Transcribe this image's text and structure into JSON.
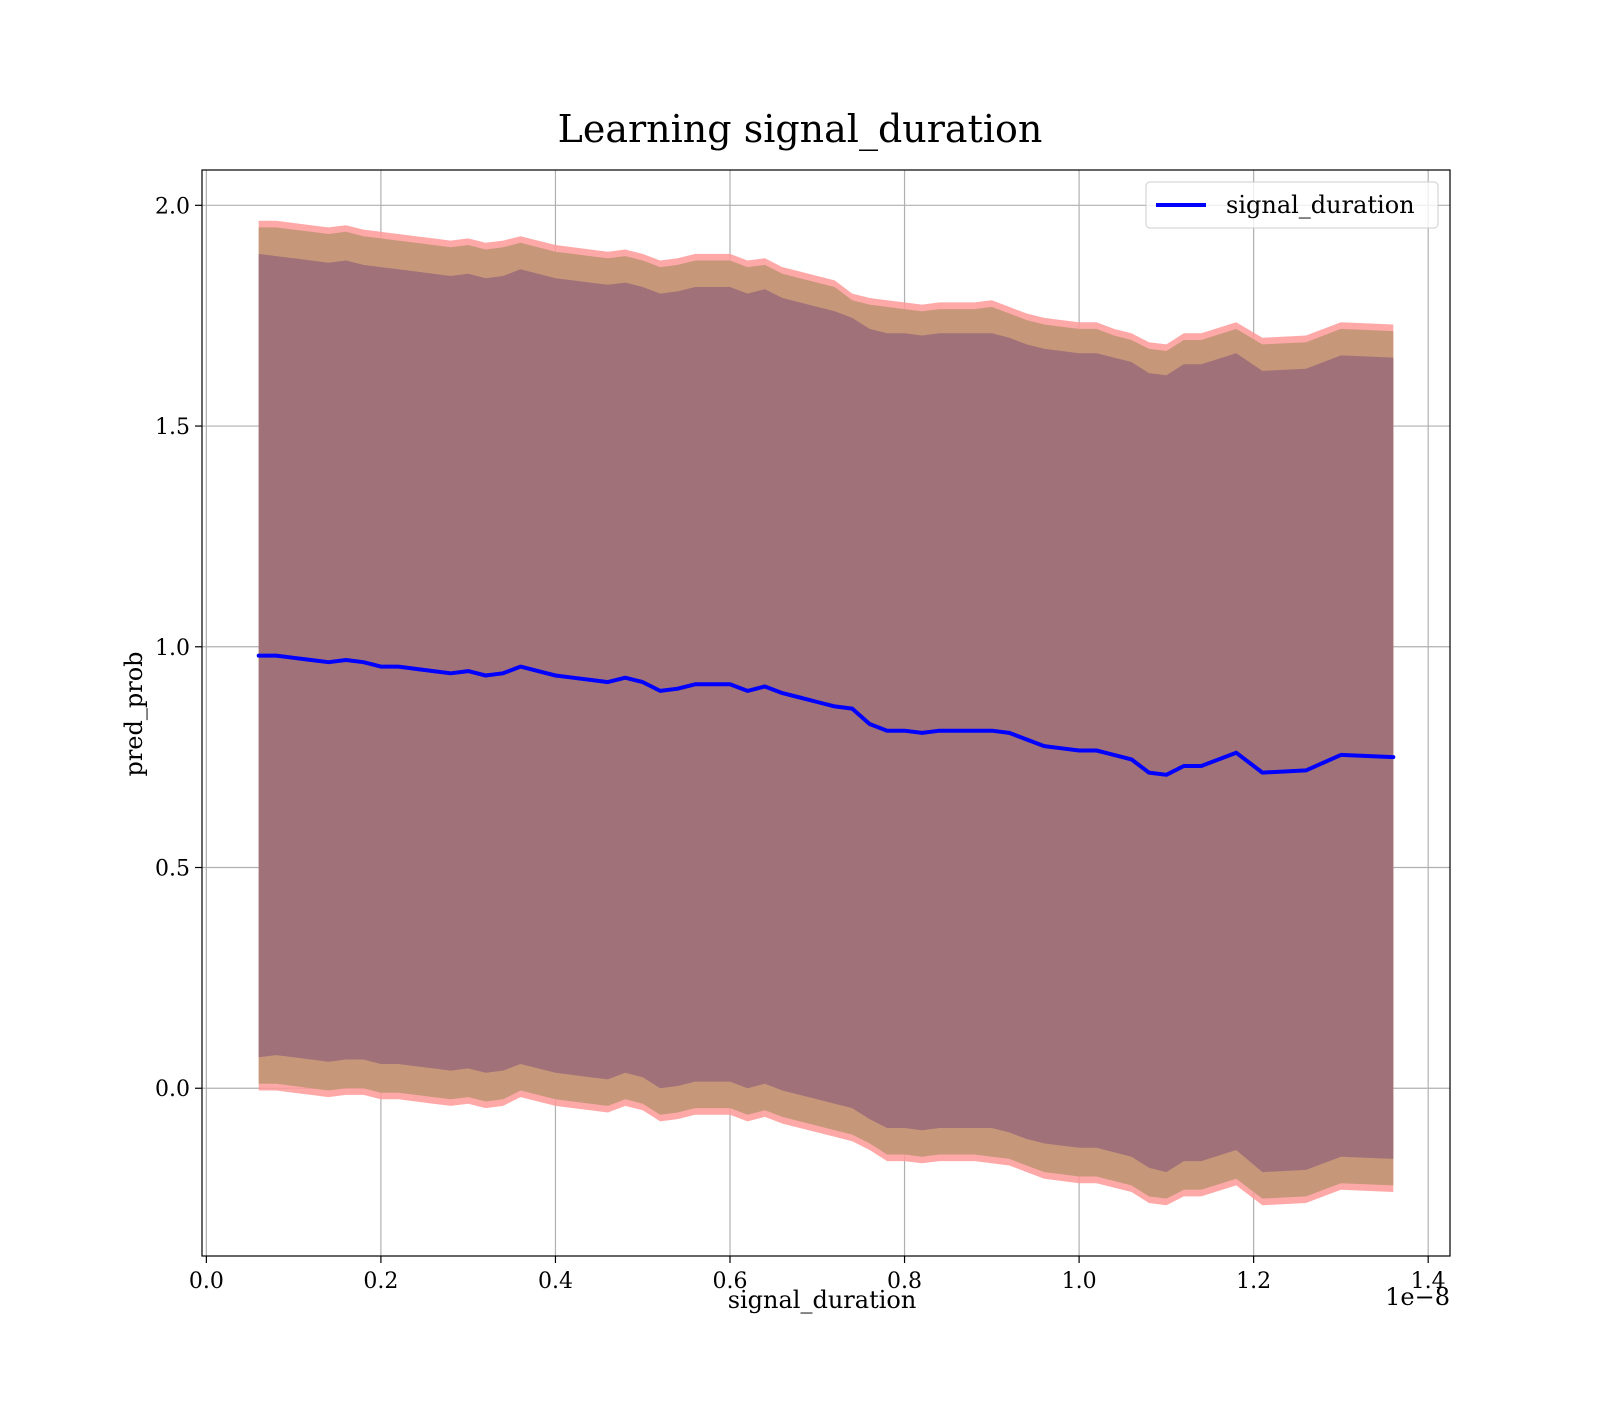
{
  "colors": {
    "line": "#0000ff",
    "band_outer": "#ff9999",
    "band_middle": "#c7977a",
    "band_inner": "#a07179",
    "grid": "#b0b0b0",
    "frame": "#000000"
  },
  "chart_data": {
    "type": "line",
    "title": "Learning signal_duration",
    "xlabel": "signal_duration",
    "ylabel": "pred_prob",
    "x_offset_label": "1e−8",
    "xlim": [
      -0.005,
      1.425
    ],
    "ylim": [
      -0.38,
      2.08
    ],
    "x_ticks": [
      0.0,
      0.2,
      0.4,
      0.6,
      0.8,
      1.0,
      1.2,
      1.4
    ],
    "x_tick_labels": [
      "0.0",
      "0.2",
      "0.4",
      "0.6",
      "0.8",
      "1.0",
      "1.2",
      "1.4"
    ],
    "y_ticks": [
      0.0,
      0.5,
      1.0,
      1.5,
      2.0
    ],
    "y_tick_labels": [
      "0.0",
      "0.5",
      "1.0",
      "1.5",
      "2.0"
    ],
    "grid": true,
    "legend_position": "top-right",
    "series": [
      {
        "name": "signal_duration",
        "x": [
          0.06,
          0.08,
          0.1,
          0.12,
          0.14,
          0.16,
          0.18,
          0.2,
          0.22,
          0.24,
          0.26,
          0.28,
          0.3,
          0.32,
          0.34,
          0.36,
          0.38,
          0.4,
          0.42,
          0.44,
          0.46,
          0.48,
          0.5,
          0.52,
          0.54,
          0.56,
          0.58,
          0.6,
          0.62,
          0.64,
          0.66,
          0.68,
          0.7,
          0.72,
          0.74,
          0.76,
          0.78,
          0.8,
          0.82,
          0.84,
          0.86,
          0.88,
          0.9,
          0.92,
          0.94,
          0.96,
          0.98,
          1.0,
          1.02,
          1.04,
          1.06,
          1.08,
          1.1,
          1.12,
          1.14,
          1.18,
          1.21,
          1.26,
          1.3,
          1.36
        ],
        "values": [
          0.98,
          0.98,
          0.975,
          0.97,
          0.965,
          0.97,
          0.965,
          0.955,
          0.955,
          0.95,
          0.945,
          0.94,
          0.945,
          0.935,
          0.94,
          0.955,
          0.945,
          0.935,
          0.93,
          0.925,
          0.92,
          0.93,
          0.92,
          0.9,
          0.905,
          0.915,
          0.915,
          0.915,
          0.9,
          0.91,
          0.895,
          0.885,
          0.875,
          0.865,
          0.86,
          0.825,
          0.81,
          0.81,
          0.805,
          0.81,
          0.81,
          0.81,
          0.81,
          0.805,
          0.79,
          0.775,
          0.77,
          0.765,
          0.765,
          0.755,
          0.745,
          0.715,
          0.71,
          0.73,
          0.73,
          0.76,
          0.715,
          0.72,
          0.755,
          0.75
        ]
      }
    ],
    "bands": [
      {
        "x": [
          0.06,
          0.08,
          0.1,
          0.12,
          0.14,
          0.16,
          0.18,
          0.2,
          0.22,
          0.24,
          0.26,
          0.28,
          0.3,
          0.32,
          0.34,
          0.36,
          0.38,
          0.4,
          0.42,
          0.44,
          0.46,
          0.48,
          0.5,
          0.52,
          0.54,
          0.56,
          0.58,
          0.6,
          0.62,
          0.64,
          0.66,
          0.68,
          0.7,
          0.72,
          0.74,
          0.76,
          0.78,
          0.8,
          0.82,
          0.84,
          0.86,
          0.88,
          0.9,
          0.92,
          0.94,
          0.96,
          0.98,
          1.0,
          1.02,
          1.04,
          1.06,
          1.08,
          1.1,
          1.12,
          1.14,
          1.18,
          1.21,
          1.26,
          1.3,
          1.36
        ],
        "upper": [
          1.965,
          1.965,
          1.96,
          1.955,
          1.95,
          1.955,
          1.945,
          1.94,
          1.935,
          1.93,
          1.925,
          1.92,
          1.925,
          1.915,
          1.92,
          1.93,
          1.92,
          1.91,
          1.905,
          1.9,
          1.895,
          1.9,
          1.89,
          1.875,
          1.88,
          1.89,
          1.89,
          1.89,
          1.875,
          1.88,
          1.86,
          1.85,
          1.84,
          1.83,
          1.8,
          1.79,
          1.785,
          1.78,
          1.775,
          1.78,
          1.78,
          1.78,
          1.785,
          1.77,
          1.755,
          1.745,
          1.74,
          1.735,
          1.735,
          1.72,
          1.71,
          1.69,
          1.685,
          1.71,
          1.71,
          1.735,
          1.7,
          1.705,
          1.735,
          1.73
        ],
        "lower": [
          -0.005,
          -0.005,
          -0.01,
          -0.015,
          -0.02,
          -0.015,
          -0.015,
          -0.025,
          -0.025,
          -0.03,
          -0.035,
          -0.04,
          -0.035,
          -0.045,
          -0.04,
          -0.02,
          -0.03,
          -0.04,
          -0.045,
          -0.05,
          -0.055,
          -0.04,
          -0.05,
          -0.075,
          -0.07,
          -0.06,
          -0.06,
          -0.06,
          -0.075,
          -0.065,
          -0.08,
          -0.09,
          -0.1,
          -0.11,
          -0.12,
          -0.14,
          -0.165,
          -0.165,
          -0.17,
          -0.165,
          -0.165,
          -0.165,
          -0.17,
          -0.175,
          -0.19,
          -0.205,
          -0.21,
          -0.215,
          -0.215,
          -0.225,
          -0.235,
          -0.26,
          -0.265,
          -0.245,
          -0.245,
          -0.22,
          -0.265,
          -0.26,
          -0.23,
          -0.235
        ],
        "fill": "#ff9999",
        "opacity": 0.85
      },
      {
        "x": [
          0.06,
          0.08,
          0.1,
          0.12,
          0.14,
          0.16,
          0.18,
          0.2,
          0.22,
          0.24,
          0.26,
          0.28,
          0.3,
          0.32,
          0.34,
          0.36,
          0.38,
          0.4,
          0.42,
          0.44,
          0.46,
          0.48,
          0.5,
          0.52,
          0.54,
          0.56,
          0.58,
          0.6,
          0.62,
          0.64,
          0.66,
          0.68,
          0.7,
          0.72,
          0.74,
          0.76,
          0.78,
          0.8,
          0.82,
          0.84,
          0.86,
          0.88,
          0.9,
          0.92,
          0.94,
          0.96,
          0.98,
          1.0,
          1.02,
          1.04,
          1.06,
          1.08,
          1.1,
          1.12,
          1.14,
          1.18,
          1.21,
          1.26,
          1.3,
          1.36
        ],
        "upper": [
          1.95,
          1.95,
          1.945,
          1.94,
          1.935,
          1.94,
          1.93,
          1.925,
          1.92,
          1.915,
          1.91,
          1.905,
          1.91,
          1.9,
          1.905,
          1.915,
          1.905,
          1.895,
          1.89,
          1.885,
          1.88,
          1.885,
          1.875,
          1.86,
          1.865,
          1.875,
          1.875,
          1.875,
          1.86,
          1.865,
          1.845,
          1.835,
          1.825,
          1.815,
          1.785,
          1.775,
          1.77,
          1.765,
          1.76,
          1.765,
          1.765,
          1.765,
          1.77,
          1.755,
          1.74,
          1.73,
          1.725,
          1.72,
          1.72,
          1.705,
          1.695,
          1.675,
          1.67,
          1.695,
          1.695,
          1.72,
          1.685,
          1.69,
          1.72,
          1.715
        ],
        "lower": [
          0.01,
          0.01,
          0.005,
          0.0,
          -0.005,
          0.0,
          0.0,
          -0.01,
          -0.01,
          -0.015,
          -0.02,
          -0.025,
          -0.02,
          -0.03,
          -0.025,
          -0.005,
          -0.015,
          -0.025,
          -0.03,
          -0.035,
          -0.04,
          -0.025,
          -0.035,
          -0.06,
          -0.055,
          -0.045,
          -0.045,
          -0.045,
          -0.06,
          -0.05,
          -0.065,
          -0.075,
          -0.085,
          -0.095,
          -0.105,
          -0.125,
          -0.15,
          -0.15,
          -0.155,
          -0.15,
          -0.15,
          -0.15,
          -0.155,
          -0.16,
          -0.175,
          -0.19,
          -0.195,
          -0.2,
          -0.2,
          -0.21,
          -0.22,
          -0.245,
          -0.25,
          -0.23,
          -0.23,
          -0.205,
          -0.25,
          -0.245,
          -0.215,
          -0.22
        ],
        "fill": "#c7977a",
        "opacity": 1
      },
      {
        "x": [
          0.06,
          0.08,
          0.1,
          0.12,
          0.14,
          0.16,
          0.18,
          0.2,
          0.22,
          0.24,
          0.26,
          0.28,
          0.3,
          0.32,
          0.34,
          0.36,
          0.38,
          0.4,
          0.42,
          0.44,
          0.46,
          0.48,
          0.5,
          0.52,
          0.54,
          0.56,
          0.58,
          0.6,
          0.62,
          0.64,
          0.66,
          0.68,
          0.7,
          0.72,
          0.74,
          0.76,
          0.78,
          0.8,
          0.82,
          0.84,
          0.86,
          0.88,
          0.9,
          0.92,
          0.94,
          0.96,
          0.98,
          1.0,
          1.02,
          1.04,
          1.06,
          1.08,
          1.1,
          1.12,
          1.14,
          1.18,
          1.21,
          1.26,
          1.3,
          1.36
        ],
        "upper": [
          1.89,
          1.885,
          1.88,
          1.875,
          1.87,
          1.875,
          1.865,
          1.86,
          1.855,
          1.85,
          1.845,
          1.84,
          1.845,
          1.835,
          1.84,
          1.855,
          1.845,
          1.835,
          1.83,
          1.825,
          1.82,
          1.825,
          1.815,
          1.8,
          1.805,
          1.815,
          1.815,
          1.815,
          1.8,
          1.81,
          1.79,
          1.78,
          1.77,
          1.76,
          1.745,
          1.72,
          1.71,
          1.71,
          1.705,
          1.71,
          1.71,
          1.71,
          1.71,
          1.7,
          1.685,
          1.675,
          1.67,
          1.665,
          1.665,
          1.655,
          1.645,
          1.62,
          1.615,
          1.64,
          1.64,
          1.665,
          1.625,
          1.63,
          1.66,
          1.655
        ],
        "lower": [
          0.07,
          0.075,
          0.07,
          0.065,
          0.06,
          0.065,
          0.065,
          0.055,
          0.055,
          0.05,
          0.045,
          0.04,
          0.045,
          0.035,
          0.04,
          0.055,
          0.045,
          0.035,
          0.03,
          0.025,
          0.02,
          0.035,
          0.025,
          0.0,
          0.005,
          0.015,
          0.015,
          0.015,
          0.0,
          0.01,
          -0.005,
          -0.015,
          -0.025,
          -0.035,
          -0.045,
          -0.07,
          -0.09,
          -0.09,
          -0.095,
          -0.09,
          -0.09,
          -0.09,
          -0.09,
          -0.1,
          -0.115,
          -0.125,
          -0.13,
          -0.135,
          -0.135,
          -0.145,
          -0.155,
          -0.18,
          -0.19,
          -0.165,
          -0.165,
          -0.14,
          -0.19,
          -0.185,
          -0.155,
          -0.16
        ],
        "fill": "#a07179",
        "opacity": 1
      }
    ]
  }
}
